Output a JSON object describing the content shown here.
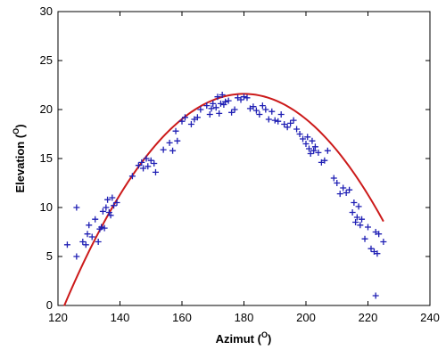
{
  "chart_data": {
    "type": "scatter",
    "xlabel": "Azimut",
    "xlabel_unit": "O",
    "ylabel": "Elevation",
    "ylabel_unit": "O",
    "xlim": [
      120,
      240
    ],
    "ylim": [
      0,
      30
    ],
    "xticks": [
      120,
      140,
      160,
      180,
      200,
      220,
      240
    ],
    "yticks": [
      0,
      5,
      10,
      15,
      20,
      25,
      30
    ],
    "grid": false,
    "colors": {
      "points": "#1f1fb4",
      "curve": "#cc1a1a"
    },
    "series": [
      {
        "kind": "scatter",
        "marker": "+",
        "points": [
          [
            123,
            6.2
          ],
          [
            126,
            10.0
          ],
          [
            126,
            5.0
          ],
          [
            128,
            6.5
          ],
          [
            129,
            6.2
          ],
          [
            129.5,
            7.3
          ],
          [
            130,
            8.2
          ],
          [
            131,
            7.0
          ],
          [
            132,
            8.8
          ],
          [
            133,
            6.5
          ],
          [
            133.5,
            7.8
          ],
          [
            134,
            8.0
          ],
          [
            134.5,
            9.6
          ],
          [
            135,
            7.9
          ],
          [
            135.5,
            10.0
          ],
          [
            136,
            10.8
          ],
          [
            136.5,
            9.5
          ],
          [
            137,
            9.2
          ],
          [
            137.5,
            11.0
          ],
          [
            138,
            10.2
          ],
          [
            139,
            10.5
          ],
          [
            144,
            13.2
          ],
          [
            146,
            14.3
          ],
          [
            147,
            14.6
          ],
          [
            147.5,
            14.0
          ],
          [
            148.5,
            15.0
          ],
          [
            149,
            14.2
          ],
          [
            150,
            14.8
          ],
          [
            151,
            14.5
          ],
          [
            151.5,
            13.6
          ],
          [
            154,
            15.9
          ],
          [
            156,
            16.6
          ],
          [
            157,
            15.8
          ],
          [
            158,
            17.8
          ],
          [
            158.5,
            16.8
          ],
          [
            160,
            18.8
          ],
          [
            161,
            19.2
          ],
          [
            163,
            18.5
          ],
          [
            164,
            19.0
          ],
          [
            165,
            19.2
          ],
          [
            166,
            20.0
          ],
          [
            168,
            20.4
          ],
          [
            169,
            19.5
          ],
          [
            169.5,
            20.1
          ],
          [
            170,
            20.6
          ],
          [
            171,
            20.2
          ],
          [
            171.5,
            21.3
          ],
          [
            172,
            19.6
          ],
          [
            172.5,
            20.6
          ],
          [
            173,
            21.5
          ],
          [
            173.5,
            20.5
          ],
          [
            174,
            20.8
          ],
          [
            175,
            20.9
          ],
          [
            176,
            19.7
          ],
          [
            177,
            20.0
          ],
          [
            178,
            21.2
          ],
          [
            179,
            21.0
          ],
          [
            180,
            21.3
          ],
          [
            181,
            21.2
          ],
          [
            182,
            20.1
          ],
          [
            183,
            20.3
          ],
          [
            184,
            19.9
          ],
          [
            185,
            19.5
          ],
          [
            186,
            20.4
          ],
          [
            187,
            20.0
          ],
          [
            188,
            19.0
          ],
          [
            189,
            19.8
          ],
          [
            190,
            18.9
          ],
          [
            191,
            18.8
          ],
          [
            192,
            19.5
          ],
          [
            193,
            18.5
          ],
          [
            194,
            18.2
          ],
          [
            195,
            18.6
          ],
          [
            196,
            18.9
          ],
          [
            197,
            18.0
          ],
          [
            198,
            17.5
          ],
          [
            199,
            17.0
          ],
          [
            200,
            16.5
          ],
          [
            200.5,
            17.2
          ],
          [
            201,
            16.0
          ],
          [
            201.5,
            15.5
          ],
          [
            202,
            16.8
          ],
          [
            202.5,
            15.8
          ],
          [
            203,
            16.2
          ],
          [
            204,
            15.6
          ],
          [
            205,
            14.6
          ],
          [
            206,
            14.8
          ],
          [
            207,
            15.8
          ],
          [
            209,
            13.0
          ],
          [
            210,
            12.5
          ],
          [
            211,
            11.4
          ],
          [
            212,
            12.0
          ],
          [
            213,
            11.5
          ],
          [
            214,
            11.8
          ],
          [
            215,
            9.5
          ],
          [
            215.5,
            10.5
          ],
          [
            216,
            8.5
          ],
          [
            216.5,
            9.0
          ],
          [
            217,
            10.1
          ],
          [
            217.5,
            8.2
          ],
          [
            218,
            8.8
          ],
          [
            219,
            6.8
          ],
          [
            220,
            8.0
          ],
          [
            221,
            5.8
          ],
          [
            222,
            5.5
          ],
          [
            222.5,
            7.5
          ],
          [
            223,
            5.3
          ],
          [
            223.5,
            7.3
          ],
          [
            225,
            6.5
          ],
          [
            222.5,
            1.0
          ]
        ]
      },
      {
        "kind": "line",
        "x_range": [
          122,
          225
        ],
        "peak": [
          180,
          21.6
        ],
        "curvature": 0.00643
      }
    ]
  }
}
